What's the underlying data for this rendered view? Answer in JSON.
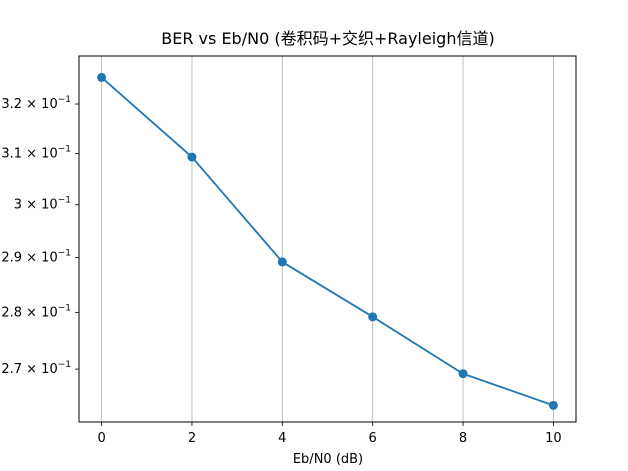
{
  "chart_data": {
    "type": "line",
    "title": "BER vs Eb/N0 (卷积码+交织+Rayleigh信道)",
    "xlabel": "Eb/N0 (dB)",
    "ylabel": "",
    "yscale": "log",
    "grid": "vertical",
    "x": [
      0,
      2,
      4,
      6,
      8,
      10
    ],
    "series": [
      {
        "values": [
          0.3255,
          0.3093,
          0.2892,
          0.2792,
          0.2692,
          0.2638
        ],
        "color": "#1f77b4",
        "marker": "circle"
      }
    ],
    "xlim": [
      -0.5,
      10.5
    ],
    "ylim": [
      0.261,
      0.33
    ],
    "xticks": [
      0,
      2,
      4,
      6,
      8,
      10
    ],
    "xtick_labels": [
      "0",
      "2",
      "4",
      "6",
      "8",
      "10"
    ],
    "yticks": [
      0.27,
      0.28,
      0.29,
      0.3,
      0.31,
      0.32
    ],
    "ytick_mantissas": [
      "2.7",
      "2.8",
      "2.9",
      "3",
      "3.1",
      "3.2"
    ],
    "ytick_base": "10",
    "ytick_exponent": "−1",
    "ytick_times": "×"
  }
}
